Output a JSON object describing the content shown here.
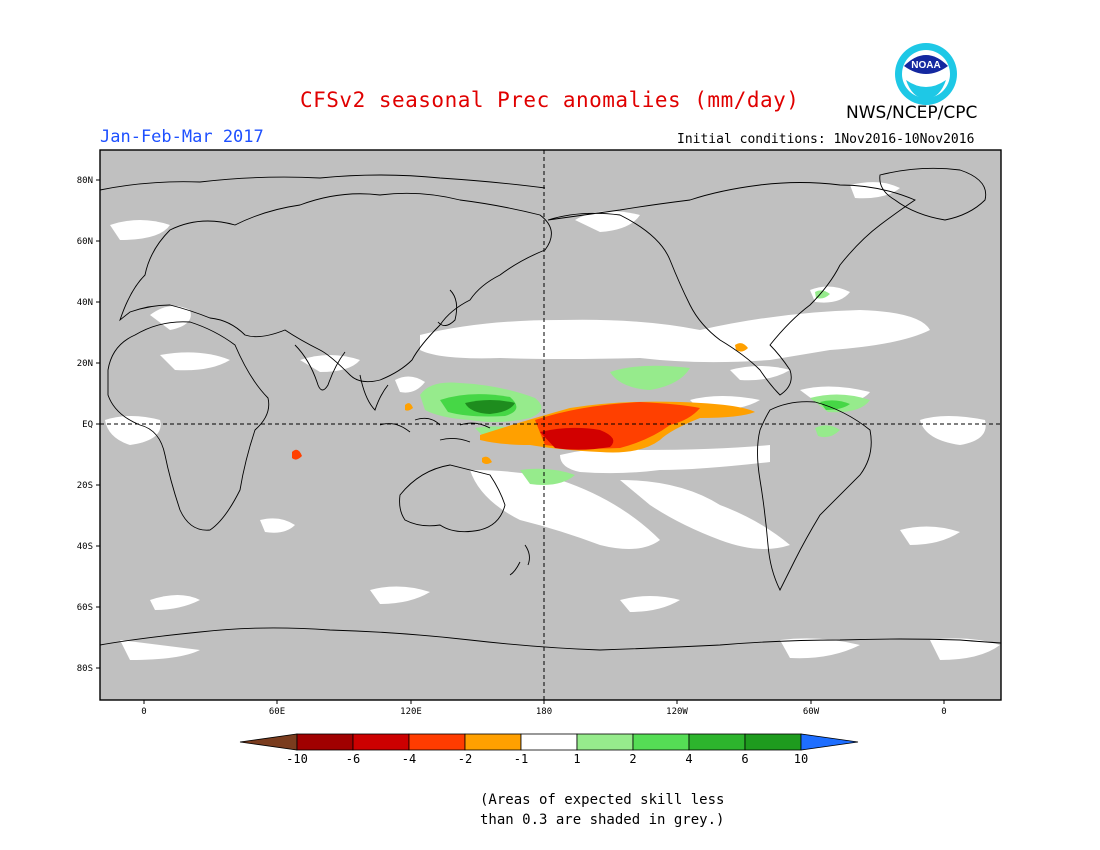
{
  "header": {
    "title": "CFSv2 seasonal Prec anomalies (mm/day)",
    "period": "Jan-Feb-Mar 2017",
    "initial_conditions": "Initial conditions: 1Nov2016-10Nov2016",
    "agency": "NWS/NCEP/CPC",
    "logo_text": "NOAA"
  },
  "map": {
    "lat_labels": [
      "80N",
      "60N",
      "40N",
      "20N",
      "EQ",
      "20S",
      "40S",
      "60S",
      "80S"
    ],
    "lon_labels": [
      "0",
      "60E",
      "120E",
      "180",
      "120W",
      "60W",
      "0"
    ],
    "colors": {
      "grey_mask": "#c0c0c0",
      "coast": "#000000",
      "dry_strong": "#d20000",
      "dry_moderate": "#ff4000",
      "dry_light": "#ffa000",
      "wet_light": "#96eb8c",
      "wet_moderate": "#46d746",
      "wet_strong": "#1e8c1e"
    }
  },
  "colorbar": {
    "labels": [
      "-10",
      "-6",
      "-4",
      "-2",
      "-1",
      "1",
      "2",
      "4",
      "6",
      "10"
    ],
    "colors": [
      "#7a3c1e",
      "#a00000",
      "#cc0000",
      "#ff3c00",
      "#ffa000",
      "#ffffff",
      "#96eb8c",
      "#55dd55",
      "#2db42d",
      "#1e9b1e",
      "#1e6eff"
    ]
  },
  "footnote": {
    "line1": "(Areas of expected skill less",
    "line2": "than 0.3 are shaded in grey.)"
  }
}
